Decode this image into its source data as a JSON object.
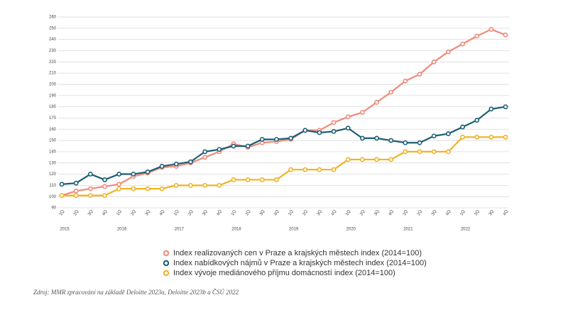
{
  "chart_data": {
    "type": "line",
    "categories": [
      "1Q",
      "2Q",
      "3Q",
      "4Q",
      "1Q",
      "2Q",
      "3Q",
      "4Q",
      "1Q",
      "2Q",
      "3Q",
      "4Q",
      "1Q",
      "2Q",
      "3Q",
      "4Q",
      "1Q",
      "2Q",
      "3Q",
      "4Q",
      "1Q",
      "2Q",
      "3Q",
      "4Q",
      "1Q",
      "2Q",
      "3Q",
      "4Q",
      "1Q",
      "2Q",
      "3Q",
      "4Q"
    ],
    "years": [
      "2015",
      "2016",
      "2017",
      "2018",
      "2019",
      "2020",
      "2021",
      "2022"
    ],
    "series": [
      {
        "name": "Index realizovaných cen v Praze a krajských městech index (2014=100)",
        "color": "#f08a7a",
        "values": [
          101,
          105,
          107,
          109,
          111,
          118,
          121,
          126,
          127,
          130,
          135,
          140,
          147,
          144,
          148,
          149,
          151,
          159,
          159,
          166,
          171,
          175,
          184,
          193,
          203,
          209,
          220,
          229,
          236,
          243,
          249,
          244
        ]
      },
      {
        "name": "Index nabídkových nájmů v Praze a krajských městech index (2014=100)",
        "color": "#1b5e73",
        "values": [
          111,
          112,
          120,
          115,
          120,
          120,
          122,
          127,
          129,
          131,
          140,
          142,
          145,
          145,
          151,
          151,
          152,
          159,
          157,
          158,
          161,
          152,
          152,
          150,
          148,
          148,
          154,
          156,
          162,
          168,
          178,
          180
        ]
      },
      {
        "name": "Index vývoje mediánového příjmu domácností index (2014=100)",
        "color": "#f0b323",
        "values": [
          101,
          101,
          101,
          101,
          107,
          107,
          107,
          107,
          110,
          110,
          110,
          110,
          115,
          115,
          115,
          115,
          124,
          124,
          124,
          124,
          133,
          133,
          133,
          133,
          140,
          140,
          140,
          140,
          153,
          153,
          153,
          153
        ]
      }
    ],
    "ylim": [
      90,
      260
    ],
    "yticks": [
      90,
      100,
      110,
      120,
      130,
      140,
      150,
      160,
      170,
      180,
      190,
      200,
      210,
      220,
      230,
      240,
      250,
      260
    ],
    "grid": true,
    "source": "Zdroj: MMR zpracování na základě Deloitte 2023a, Deloitte 2023b a ČSÚ 2022"
  }
}
